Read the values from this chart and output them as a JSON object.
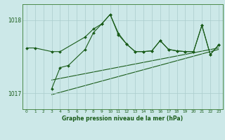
{
  "title": "Graphe pression niveau de la mer (hPa)",
  "bg_color": "#cce8e8",
  "line_color": "#1a5c1a",
  "grid_color": "#aacccc",
  "ylim": [
    1016.78,
    1018.22
  ],
  "yticks": [
    1017.0,
    1018.0
  ],
  "xlim": [
    -0.5,
    23.5
  ],
  "x_main": [
    0,
    1,
    3,
    4,
    7,
    8,
    9,
    10,
    11,
    12,
    13,
    14,
    15,
    16,
    17,
    18,
    19,
    20,
    21,
    22,
    23
  ],
  "y_main": [
    1017.62,
    1017.62,
    1017.57,
    1017.57,
    1017.77,
    1017.88,
    1017.95,
    1018.08,
    1017.82,
    1017.67,
    1017.57,
    1017.57,
    1017.58,
    1017.72,
    1017.6,
    1017.58,
    1017.57,
    1017.57,
    1017.93,
    1017.53,
    1017.66
  ],
  "x_zig": [
    3,
    4,
    5,
    7,
    8,
    9,
    10,
    11,
    12,
    13,
    14,
    15,
    16,
    17,
    18,
    19,
    20,
    21,
    22,
    23
  ],
  "y_zig": [
    1017.06,
    1017.35,
    1017.38,
    1017.6,
    1017.83,
    1017.95,
    1018.08,
    1017.8,
    1017.67,
    1017.57,
    1017.57,
    1017.58,
    1017.72,
    1017.6,
    1017.58,
    1017.57,
    1017.57,
    1017.93,
    1017.53,
    1017.66
  ],
  "trend1_x": [
    3,
    23
  ],
  "trend1_y": [
    1017.18,
    1017.62
  ],
  "trend2_x": [
    3,
    23
  ],
  "trend2_y": [
    1016.98,
    1017.6
  ]
}
